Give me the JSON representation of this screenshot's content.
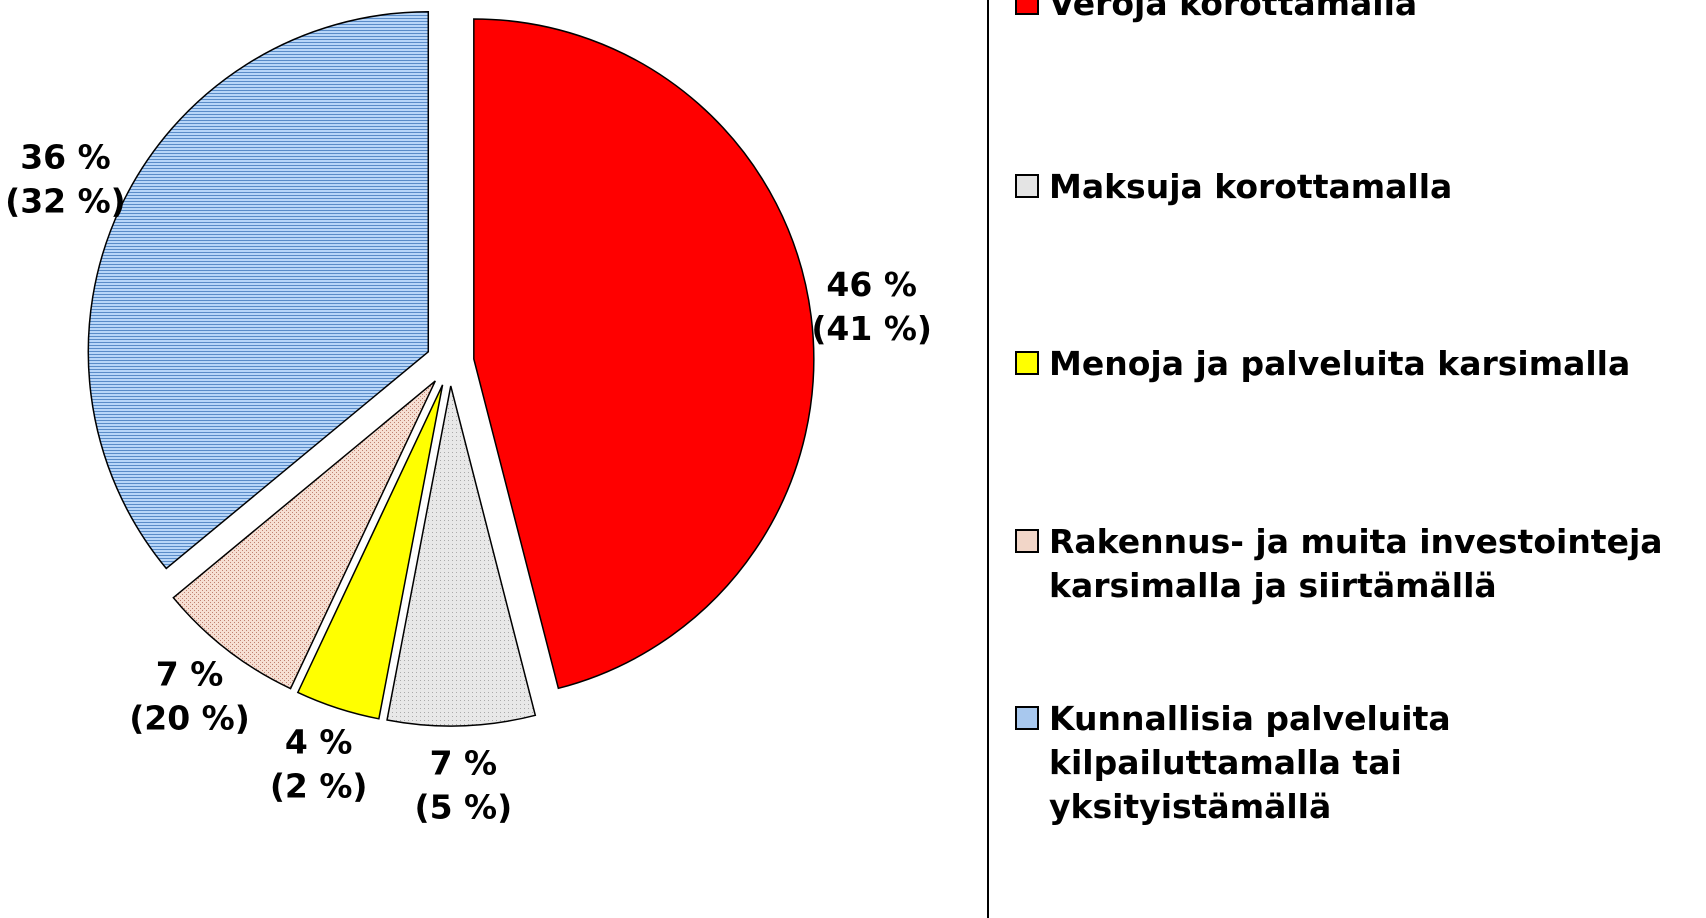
{
  "chart_data": {
    "type": "pie",
    "categories": [
      "Veroja korottamalla",
      "Maksuja korottamalla",
      "Menoja ja palveluita karsimalla",
      "Rakennus- ja muita investointeja karsimalla ja siirtämällä",
      "Kunnallisia palveluita kilpailuttamalla tai yksityistämällä"
    ],
    "values": [
      46,
      7,
      4,
      7,
      36
    ],
    "value_labels": [
      "46 %",
      "7 %",
      "4 %",
      "7 %",
      "36 %"
    ],
    "comparison_values": [
      41,
      5,
      2,
      20,
      32
    ],
    "comparison_labels": [
      "(41 %)",
      "(5 %)",
      "(2 %)",
      "(20 %)",
      "(32 %)"
    ],
    "colors": [
      "#ff0000",
      "#e4e4e4",
      "#ffff00",
      "#f2d6c8",
      "#a8c8ee"
    ],
    "legend": "right"
  }
}
